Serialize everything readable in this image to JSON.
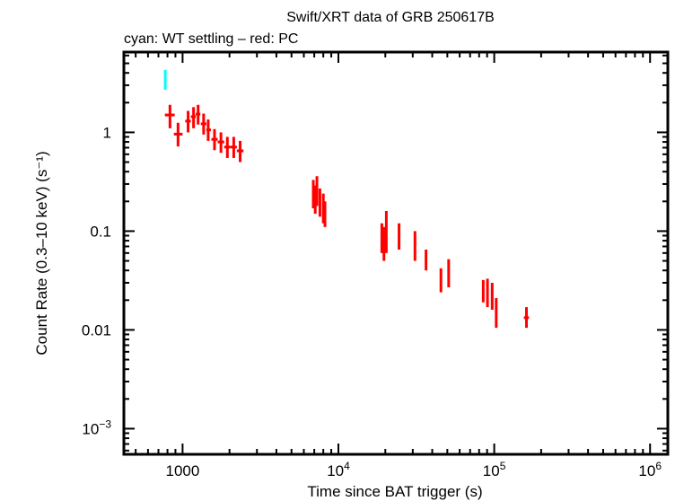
{
  "chart_data": {
    "type": "scatter",
    "title": "Swift/XRT data of GRB 250617B",
    "subtitle": "cyan: WT settling – red: PC",
    "xlabel": "Time since BAT trigger (s)",
    "ylabel": "Count Rate (0.3–10 keV) (s⁻¹)",
    "xscale": "log",
    "yscale": "log",
    "xlim": [
      420,
      1300000
    ],
    "ylim": [
      0.00055,
      6.5
    ],
    "grid": false,
    "x_ticks": [
      {
        "value": 1000,
        "label": "1000"
      },
      {
        "value": 10000,
        "base": "10",
        "exp": "4"
      },
      {
        "value": 100000,
        "base": "10",
        "exp": "5"
      },
      {
        "value": 1000000,
        "base": "10",
        "exp": "6"
      }
    ],
    "y_ticks": [
      {
        "value": 1,
        "label": "1"
      },
      {
        "value": 0.1,
        "label": "0.1"
      },
      {
        "value": 0.01,
        "label": "0.01"
      },
      {
        "value": 0.001,
        "base": "10",
        "exp": "−3"
      }
    ],
    "series": [
      {
        "name": "WT settling",
        "color": "#00ffff",
        "points": [
          {
            "x": 774,
            "xlo": 770,
            "xhi": 778,
            "y": 3.4,
            "ylo": 2.7,
            "yhi": 4.3
          }
        ]
      },
      {
        "name": "PC",
        "color": "#ff0000",
        "points": [
          {
            "x": 830,
            "xlo": 770,
            "xhi": 890,
            "y": 1.5,
            "ylo": 1.1,
            "yhi": 1.9
          },
          {
            "x": 935,
            "xlo": 880,
            "xhi": 1000,
            "y": 0.96,
            "ylo": 0.72,
            "yhi": 1.25
          },
          {
            "x": 1085,
            "xlo": 1040,
            "xhi": 1130,
            "y": 1.3,
            "ylo": 1.0,
            "yhi": 1.65
          },
          {
            "x": 1176,
            "xlo": 1130,
            "xhi": 1215,
            "y": 1.44,
            "ylo": 1.1,
            "yhi": 1.8
          },
          {
            "x": 1258,
            "xlo": 1215,
            "xhi": 1300,
            "y": 1.53,
            "ylo": 1.2,
            "yhi": 1.9
          },
          {
            "x": 1365,
            "xlo": 1310,
            "xhi": 1420,
            "y": 1.22,
            "ylo": 0.95,
            "yhi": 1.55
          },
          {
            "x": 1460,
            "xlo": 1420,
            "xhi": 1520,
            "y": 1.06,
            "ylo": 0.82,
            "yhi": 1.35
          },
          {
            "x": 1603,
            "xlo": 1530,
            "xhi": 1680,
            "y": 0.85,
            "ylo": 0.66,
            "yhi": 1.08
          },
          {
            "x": 1763,
            "xlo": 1680,
            "xhi": 1850,
            "y": 0.8,
            "ylo": 0.62,
            "yhi": 1.0
          },
          {
            "x": 1938,
            "xlo": 1850,
            "xhi": 2030,
            "y": 0.71,
            "ylo": 0.55,
            "yhi": 0.9
          },
          {
            "x": 2130,
            "xlo": 2030,
            "xhi": 2230,
            "y": 0.71,
            "ylo": 0.55,
            "yhi": 0.9
          },
          {
            "x": 2341,
            "xlo": 2230,
            "xhi": 2460,
            "y": 0.65,
            "ylo": 0.5,
            "yhi": 0.82
          },
          {
            "x": 6900,
            "xlo": 6800,
            "xhi": 7000,
            "y": 0.24,
            "ylo": 0.17,
            "yhi": 0.33
          },
          {
            "x": 7100,
            "xlo": 7000,
            "xhi": 7200,
            "y": 0.21,
            "ylo": 0.15,
            "yhi": 0.29
          },
          {
            "x": 7280,
            "xlo": 7200,
            "xhi": 7360,
            "y": 0.25,
            "ylo": 0.18,
            "yhi": 0.36
          },
          {
            "x": 7610,
            "xlo": 7500,
            "xhi": 7720,
            "y": 0.19,
            "ylo": 0.14,
            "yhi": 0.27
          },
          {
            "x": 8000,
            "xlo": 7900,
            "xhi": 8100,
            "y": 0.17,
            "ylo": 0.12,
            "yhi": 0.24
          },
          {
            "x": 8200,
            "xlo": 8100,
            "xhi": 8300,
            "y": 0.15,
            "ylo": 0.11,
            "yhi": 0.2
          },
          {
            "x": 19000,
            "xlo": 18800,
            "xhi": 19200,
            "y": 0.085,
            "ylo": 0.06,
            "yhi": 0.12
          },
          {
            "x": 19600,
            "xlo": 19400,
            "xhi": 19800,
            "y": 0.075,
            "ylo": 0.05,
            "yhi": 0.11
          },
          {
            "x": 20300,
            "xlo": 20100,
            "xhi": 20500,
            "y": 0.09,
            "ylo": 0.06,
            "yhi": 0.16
          },
          {
            "x": 24500,
            "xlo": 24200,
            "xhi": 24800,
            "y": 0.097,
            "ylo": 0.065,
            "yhi": 0.12
          },
          {
            "x": 31000,
            "xlo": 30500,
            "xhi": 31500,
            "y": 0.075,
            "ylo": 0.05,
            "yhi": 0.1
          },
          {
            "x": 36500,
            "xlo": 36000,
            "xhi": 37000,
            "y": 0.052,
            "ylo": 0.04,
            "yhi": 0.065
          },
          {
            "x": 45500,
            "xlo": 45000,
            "xhi": 46000,
            "y": 0.032,
            "ylo": 0.024,
            "yhi": 0.042
          },
          {
            "x": 51000,
            "xlo": 50500,
            "xhi": 51500,
            "y": 0.038,
            "ylo": 0.027,
            "yhi": 0.052
          },
          {
            "x": 85000,
            "xlo": 84000,
            "xhi": 86000,
            "y": 0.025,
            "ylo": 0.019,
            "yhi": 0.032
          },
          {
            "x": 90500,
            "xlo": 89500,
            "xhi": 91500,
            "y": 0.024,
            "ylo": 0.017,
            "yhi": 0.033
          },
          {
            "x": 97000,
            "xlo": 96000,
            "xhi": 98000,
            "y": 0.022,
            "ylo": 0.016,
            "yhi": 0.03
          },
          {
            "x": 103000,
            "xlo": 102000,
            "xhi": 104000,
            "y": 0.015,
            "ylo": 0.0105,
            "yhi": 0.021
          },
          {
            "x": 161000,
            "xlo": 155000,
            "xhi": 167000,
            "y": 0.0133,
            "ylo": 0.0105,
            "yhi": 0.017
          }
        ]
      }
    ]
  }
}
